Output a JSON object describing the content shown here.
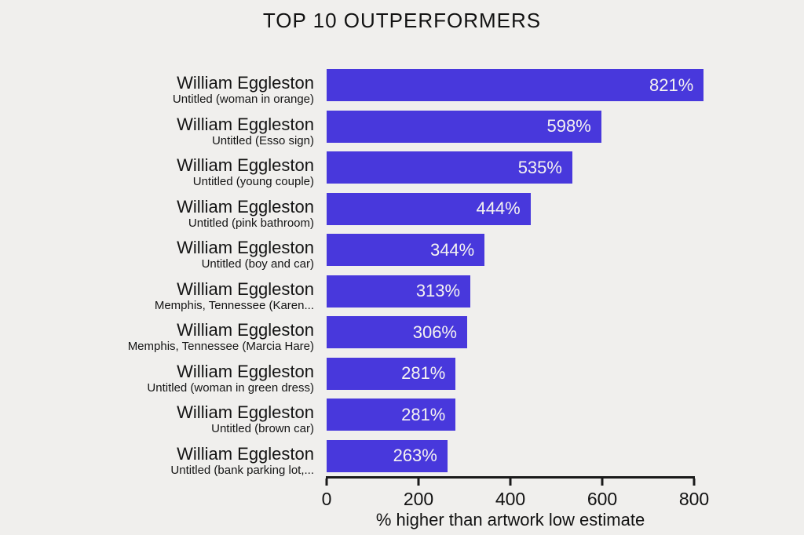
{
  "title": "TOP 10 OUTPERFORMERS",
  "colors": {
    "background": "#f0efed",
    "bar": "#4838dc",
    "text": "#141414",
    "bar_value_text": "#f5f3f1"
  },
  "chart_data": {
    "type": "bar",
    "orientation": "horizontal",
    "title": "TOP 10 OUTPERFORMERS",
    "xlabel": "% higher than artwork low estimate",
    "ylabel": "",
    "xlim": [
      0,
      800
    ],
    "xticks": [
      0,
      200,
      400,
      600,
      800
    ],
    "grid": false,
    "legend": false,
    "rows": [
      {
        "artist": "William Eggleston",
        "artwork": "Untitled (woman in orange)",
        "value": 821,
        "value_label": "821%"
      },
      {
        "artist": "William Eggleston",
        "artwork": "Untitled (Esso sign)",
        "value": 598,
        "value_label": "598%"
      },
      {
        "artist": "William Eggleston",
        "artwork": "Untitled (young couple)",
        "value": 535,
        "value_label": "535%"
      },
      {
        "artist": "William Eggleston",
        "artwork": "Untitled (pink bathroom)",
        "value": 444,
        "value_label": "444%"
      },
      {
        "artist": "William Eggleston",
        "artwork": "Untitled (boy and car)",
        "value": 344,
        "value_label": "344%"
      },
      {
        "artist": "William Eggleston",
        "artwork": "Memphis, Tennessee (Karen...",
        "value": 313,
        "value_label": "313%"
      },
      {
        "artist": "William Eggleston",
        "artwork": "Memphis, Tennessee (Marcia Hare)",
        "value": 306,
        "value_label": "306%"
      },
      {
        "artist": "William Eggleston",
        "artwork": "Untitled (woman in green dress)",
        "value": 281,
        "value_label": "281%"
      },
      {
        "artist": "William Eggleston",
        "artwork": "Untitled (brown car)",
        "value": 281,
        "value_label": "281%"
      },
      {
        "artist": "William Eggleston",
        "artwork": "Untitled (bank parking lot,...",
        "value": 263,
        "value_label": "263%"
      }
    ]
  }
}
